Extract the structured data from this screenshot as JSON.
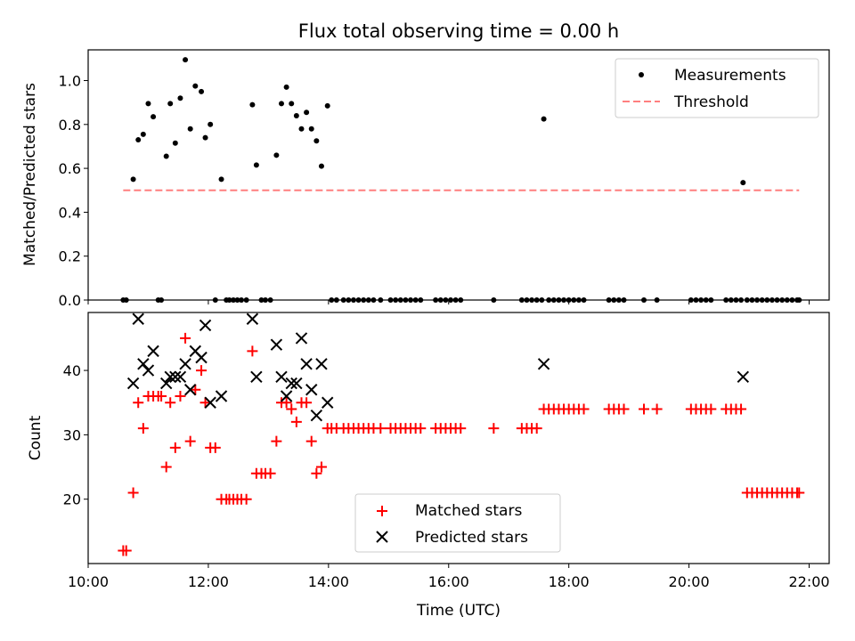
{
  "chart_data": [
    {
      "type": "scatter",
      "title": "Flux total observing time = 0.00 h",
      "xlabel": "",
      "ylabel": "Matched/Predicted stars",
      "xlim": [
        "10:00",
        "22:20"
      ],
      "ylim": [
        0,
        1.14
      ],
      "yticks": [
        0.0,
        0.2,
        0.4,
        0.6,
        0.8,
        1.0
      ],
      "ytick_labels": [
        "0.0",
        "0.2",
        "0.4",
        "0.6",
        "0.8",
        "1.0"
      ],
      "grid": false,
      "legend_position": "top-right",
      "series": [
        {
          "name": "Measurements",
          "marker": "dot",
          "color": "#000000",
          "points": [
            [
              "10:35",
              0.0
            ],
            [
              "10:38",
              0.0
            ],
            [
              "10:45",
              0.55
            ],
            [
              "10:50",
              0.73
            ],
            [
              "10:55",
              0.755
            ],
            [
              "11:00",
              0.895
            ],
            [
              "11:05",
              0.835
            ],
            [
              "11:10",
              0.0
            ],
            [
              "11:13",
              0.0
            ],
            [
              "11:18",
              0.655
            ],
            [
              "11:22",
              0.895
            ],
            [
              "11:27",
              0.715
            ],
            [
              "11:32",
              0.92
            ],
            [
              "11:37",
              1.095
            ],
            [
              "11:42",
              0.78
            ],
            [
              "11:47",
              0.975
            ],
            [
              "11:53",
              0.95
            ],
            [
              "11:57",
              0.74
            ],
            [
              "12:02",
              0.8
            ],
            [
              "12:07",
              0.0
            ],
            [
              "12:13",
              0.55
            ],
            [
              "12:18",
              0.0
            ],
            [
              "12:21",
              0.0
            ],
            [
              "12:25",
              0.0
            ],
            [
              "12:29",
              0.0
            ],
            [
              "12:33",
              0.0
            ],
            [
              "12:38",
              0.0
            ],
            [
              "12:44",
              0.89
            ],
            [
              "12:48",
              0.615
            ],
            [
              "12:53",
              0.0
            ],
            [
              "12:57",
              0.0
            ],
            [
              "13:02",
              0.0
            ],
            [
              "13:08",
              0.66
            ],
            [
              "13:13",
              0.895
            ],
            [
              "13:18",
              0.97
            ],
            [
              "13:23",
              0.895
            ],
            [
              "13:28",
              0.84
            ],
            [
              "13:33",
              0.78
            ],
            [
              "13:38",
              0.855
            ],
            [
              "13:43",
              0.78
            ],
            [
              "13:48",
              0.725
            ],
            [
              "13:53",
              0.61
            ],
            [
              "13:59",
              0.885
            ],
            [
              "14:03",
              0.0
            ],
            [
              "14:08",
              0.0
            ],
            [
              "14:15",
              0.0
            ],
            [
              "14:20",
              0.0
            ],
            [
              "14:25",
              0.0
            ],
            [
              "14:30",
              0.0
            ],
            [
              "14:35",
              0.0
            ],
            [
              "14:40",
              0.0
            ],
            [
              "14:45",
              0.0
            ],
            [
              "14:52",
              0.0
            ],
            [
              "15:02",
              0.0
            ],
            [
              "15:07",
              0.0
            ],
            [
              "15:12",
              0.0
            ],
            [
              "15:17",
              0.0
            ],
            [
              "15:22",
              0.0
            ],
            [
              "15:27",
              0.0
            ],
            [
              "15:32",
              0.0
            ],
            [
              "15:47",
              0.0
            ],
            [
              "15:52",
              0.0
            ],
            [
              "15:57",
              0.0
            ],
            [
              "16:02",
              0.0
            ],
            [
              "16:07",
              0.0
            ],
            [
              "16:12",
              0.0
            ],
            [
              "16:45",
              0.0
            ],
            [
              "17:13",
              0.0
            ],
            [
              "17:18",
              0.0
            ],
            [
              "17:23",
              0.0
            ],
            [
              "17:28",
              0.0
            ],
            [
              "17:33",
              0.0
            ],
            [
              "17:35",
              0.825
            ],
            [
              "17:40",
              0.0
            ],
            [
              "17:45",
              0.0
            ],
            [
              "17:50",
              0.0
            ],
            [
              "17:55",
              0.0
            ],
            [
              "18:00",
              0.0
            ],
            [
              "18:05",
              0.0
            ],
            [
              "18:10",
              0.0
            ],
            [
              "18:15",
              0.0
            ],
            [
              "18:40",
              0.0
            ],
            [
              "18:45",
              0.0
            ],
            [
              "18:50",
              0.0
            ],
            [
              "18:55",
              0.0
            ],
            [
              "19:15",
              0.0
            ],
            [
              "19:28",
              0.0
            ],
            [
              "20:02",
              0.0
            ],
            [
              "20:07",
              0.0
            ],
            [
              "20:12",
              0.0
            ],
            [
              "20:17",
              0.0
            ],
            [
              "20:22",
              0.0
            ],
            [
              "20:37",
              0.0
            ],
            [
              "20:42",
              0.0
            ],
            [
              "20:47",
              0.0
            ],
            [
              "20:52",
              0.0
            ],
            [
              "20:54",
              0.535
            ],
            [
              "20:58",
              0.0
            ],
            [
              "21:03",
              0.0
            ],
            [
              "21:08",
              0.0
            ],
            [
              "21:13",
              0.0
            ],
            [
              "21:18",
              0.0
            ],
            [
              "21:23",
              0.0
            ],
            [
              "21:28",
              0.0
            ],
            [
              "21:33",
              0.0
            ],
            [
              "21:38",
              0.0
            ],
            [
              "21:43",
              0.0
            ],
            [
              "21:48",
              0.0
            ],
            [
              "21:50",
              0.0
            ]
          ]
        },
        {
          "name": "Threshold",
          "marker": "dashed-line",
          "color": "#ff7f7f",
          "points": [
            [
              "10:35",
              0.5
            ],
            [
              "21:50",
              0.5
            ]
          ]
        }
      ]
    },
    {
      "type": "scatter",
      "title": "",
      "xlabel": "Time (UTC)",
      "ylabel": "Count",
      "xlim": [
        "10:00",
        "22:20"
      ],
      "ylim": [
        10,
        49
      ],
      "yticks": [
        20,
        30,
        40
      ],
      "ytick_labels": [
        "20",
        "30",
        "40"
      ],
      "xticks": [
        "10:00",
        "12:00",
        "14:00",
        "16:00",
        "18:00",
        "20:00",
        "22:00"
      ],
      "xtick_labels": [
        "10:00",
        "12:00",
        "14:00",
        "16:00",
        "18:00",
        "20:00",
        "22:00"
      ],
      "grid": false,
      "legend_position": "lower-center",
      "series": [
        {
          "name": "Matched stars",
          "marker": "plus",
          "color": "#ff0000",
          "points": [
            [
              "10:35",
              12
            ],
            [
              "10:38",
              12
            ],
            [
              "10:45",
              21
            ],
            [
              "10:50",
              35
            ],
            [
              "10:55",
              31
            ],
            [
              "11:00",
              36
            ],
            [
              "11:05",
              36
            ],
            [
              "11:10",
              36
            ],
            [
              "11:13",
              36
            ],
            [
              "11:18",
              25
            ],
            [
              "11:22",
              35
            ],
            [
              "11:27",
              28
            ],
            [
              "11:32",
              36
            ],
            [
              "11:37",
              45
            ],
            [
              "11:42",
              29
            ],
            [
              "11:47",
              37
            ],
            [
              "11:53",
              40
            ],
            [
              "11:57",
              35
            ],
            [
              "12:02",
              28
            ],
            [
              "12:07",
              28
            ],
            [
              "12:13",
              20
            ],
            [
              "12:18",
              20
            ],
            [
              "12:21",
              20
            ],
            [
              "12:25",
              20
            ],
            [
              "12:29",
              20
            ],
            [
              "12:33",
              20
            ],
            [
              "12:38",
              20
            ],
            [
              "12:44",
              43
            ],
            [
              "12:48",
              24
            ],
            [
              "12:53",
              24
            ],
            [
              "12:57",
              24
            ],
            [
              "13:02",
              24
            ],
            [
              "13:08",
              29
            ],
            [
              "13:13",
              35
            ],
            [
              "13:18",
              35
            ],
            [
              "13:23",
              34
            ],
            [
              "13:28",
              32
            ],
            [
              "13:33",
              35
            ],
            [
              "13:38",
              35
            ],
            [
              "13:43",
              29
            ],
            [
              "13:48",
              24
            ],
            [
              "13:53",
              25
            ],
            [
              "13:59",
              31
            ],
            [
              "14:03",
              31
            ],
            [
              "14:08",
              31
            ],
            [
              "14:15",
              31
            ],
            [
              "14:20",
              31
            ],
            [
              "14:25",
              31
            ],
            [
              "14:30",
              31
            ],
            [
              "14:35",
              31
            ],
            [
              "14:40",
              31
            ],
            [
              "14:45",
              31
            ],
            [
              "14:52",
              31
            ],
            [
              "15:02",
              31
            ],
            [
              "15:07",
              31
            ],
            [
              "15:12",
              31
            ],
            [
              "15:17",
              31
            ],
            [
              "15:22",
              31
            ],
            [
              "15:27",
              31
            ],
            [
              "15:32",
              31
            ],
            [
              "15:47",
              31
            ],
            [
              "15:52",
              31
            ],
            [
              "15:57",
              31
            ],
            [
              "16:02",
              31
            ],
            [
              "16:07",
              31
            ],
            [
              "16:12",
              31
            ],
            [
              "16:45",
              31
            ],
            [
              "17:13",
              31
            ],
            [
              "17:18",
              31
            ],
            [
              "17:23",
              31
            ],
            [
              "17:28",
              31
            ],
            [
              "17:35",
              34
            ],
            [
              "17:40",
              34
            ],
            [
              "17:45",
              34
            ],
            [
              "17:50",
              34
            ],
            [
              "17:55",
              34
            ],
            [
              "18:00",
              34
            ],
            [
              "18:05",
              34
            ],
            [
              "18:10",
              34
            ],
            [
              "18:15",
              34
            ],
            [
              "18:40",
              34
            ],
            [
              "18:45",
              34
            ],
            [
              "18:50",
              34
            ],
            [
              "18:55",
              34
            ],
            [
              "19:15",
              34
            ],
            [
              "19:28",
              34
            ],
            [
              "20:02",
              34
            ],
            [
              "20:07",
              34
            ],
            [
              "20:12",
              34
            ],
            [
              "20:17",
              34
            ],
            [
              "20:22",
              34
            ],
            [
              "20:37",
              34
            ],
            [
              "20:42",
              34
            ],
            [
              "20:47",
              34
            ],
            [
              "20:52",
              34
            ],
            [
              "20:58",
              21
            ],
            [
              "21:03",
              21
            ],
            [
              "21:08",
              21
            ],
            [
              "21:13",
              21
            ],
            [
              "21:18",
              21
            ],
            [
              "21:23",
              21
            ],
            [
              "21:28",
              21
            ],
            [
              "21:33",
              21
            ],
            [
              "21:38",
              21
            ],
            [
              "21:43",
              21
            ],
            [
              "21:48",
              21
            ],
            [
              "21:50",
              21
            ]
          ]
        },
        {
          "name": "Predicted stars",
          "marker": "x",
          "color": "#000000",
          "points": [
            [
              "10:45",
              38
            ],
            [
              "10:50",
              48
            ],
            [
              "10:55",
              41
            ],
            [
              "11:00",
              40
            ],
            [
              "11:05",
              43
            ],
            [
              "11:18",
              38
            ],
            [
              "11:22",
              39
            ],
            [
              "11:27",
              39
            ],
            [
              "11:32",
              39
            ],
            [
              "11:37",
              41
            ],
            [
              "11:42",
              37
            ],
            [
              "11:47",
              43
            ],
            [
              "11:53",
              42
            ],
            [
              "11:57",
              47
            ],
            [
              "12:02",
              35
            ],
            [
              "12:13",
              36
            ],
            [
              "12:44",
              48
            ],
            [
              "12:48",
              39
            ],
            [
              "13:08",
              44
            ],
            [
              "13:13",
              39
            ],
            [
              "13:18",
              36
            ],
            [
              "13:23",
              38
            ],
            [
              "13:28",
              38
            ],
            [
              "13:33",
              45
            ],
            [
              "13:38",
              41
            ],
            [
              "13:43",
              37
            ],
            [
              "13:48",
              33
            ],
            [
              "13:53",
              41
            ],
            [
              "13:59",
              35
            ],
            [
              "17:35",
              41
            ],
            [
              "20:54",
              39
            ]
          ]
        }
      ]
    }
  ]
}
